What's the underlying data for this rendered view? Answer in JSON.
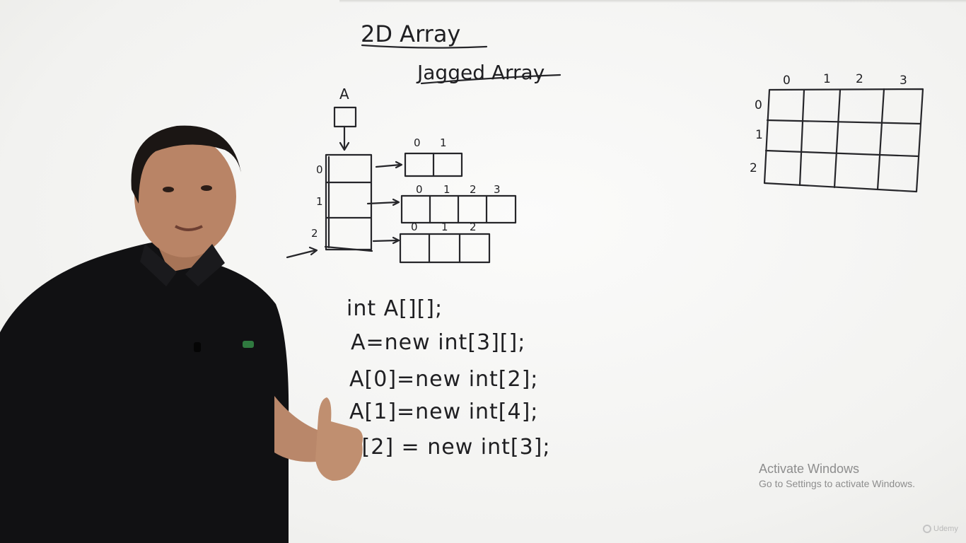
{
  "whiteboard": {
    "title": "2D Array",
    "subtitle": "Jagged Array",
    "reference_label": "A",
    "row_indices": [
      "0",
      "1",
      "2"
    ],
    "jagged_rows": [
      {
        "indices": [
          "0",
          "1"
        ]
      },
      {
        "indices": [
          "0",
          "1",
          "2",
          "3"
        ]
      },
      {
        "indices": [
          "0",
          "1",
          "2"
        ]
      }
    ],
    "code_lines": [
      "int A[][];",
      "A=new int[3][];",
      "A[0]=new int[2];",
      "A[1]=new int[4];",
      "A[2] = new int[3];"
    ],
    "grid": {
      "column_indices": [
        "0",
        "1",
        "2",
        "3"
      ],
      "row_indices": [
        "0",
        "1",
        "2"
      ]
    }
  },
  "overlay": {
    "activate_title": "Activate Windows",
    "activate_subtitle": "Go to Settings to activate Windows.",
    "brand": "Udemy"
  }
}
